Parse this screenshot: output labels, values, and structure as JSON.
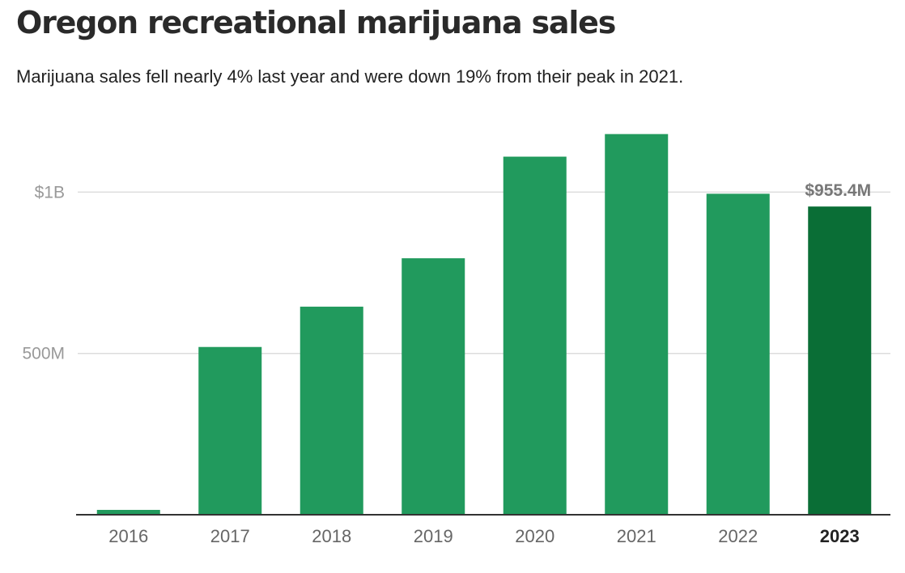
{
  "title": "Oregon recreational marijuana sales",
  "subtitle": "Marijuana sales fell nearly 4% last year and were down 19% from their peak in 2021.",
  "colors": {
    "bar": "#219a5d",
    "highlight_bar": "#0a6e36",
    "gridline": "#dddddd",
    "axis": "#333333",
    "tick_text": "#999999",
    "category_text": "#666666",
    "highlight_text": "#222222",
    "annotation_text": "#777777"
  },
  "chart_data": {
    "type": "bar",
    "title": "Oregon recreational marijuana sales",
    "subtitle": "Marijuana sales fell nearly 4% last year and were down 19% from their peak in 2021.",
    "xlabel": "",
    "ylabel": "",
    "categories": [
      "2016",
      "2017",
      "2018",
      "2019",
      "2020",
      "2021",
      "2022",
      "2023"
    ],
    "values": [
      15,
      520,
      645,
      795,
      1110,
      1180,
      995,
      955.4
    ],
    "unit": "millions of dollars",
    "ylim": [
      0,
      1250
    ],
    "yticks": [
      {
        "value": 500,
        "label": "500M"
      },
      {
        "value": 1000,
        "label": "$1B"
      }
    ],
    "grid": true,
    "highlight_index": 7,
    "annotations": [
      {
        "category": "2023",
        "label": "$955.4M"
      }
    ]
  }
}
